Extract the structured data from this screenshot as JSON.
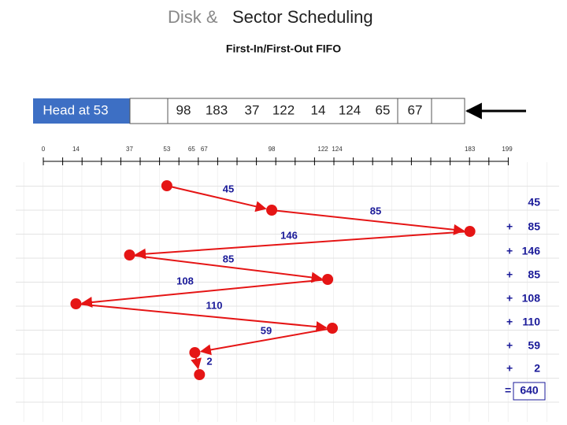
{
  "title_prefix": "Disk &",
  "title_main": "Sector Scheduling",
  "subtitle": "First-In/First-Out FIFO",
  "head_label": "Head at 53",
  "head": 53,
  "queue": [
    98,
    183,
    37,
    122,
    14,
    124,
    65,
    67
  ],
  "axis_labels": [
    0,
    14,
    37,
    53,
    65,
    67,
    98,
    122,
    124,
    183,
    199
  ],
  "moves": [
    45,
    85,
    146,
    85,
    108,
    110,
    59,
    2
  ],
  "plus_sign": "+",
  "equals_sign": "=",
  "total": 640
}
